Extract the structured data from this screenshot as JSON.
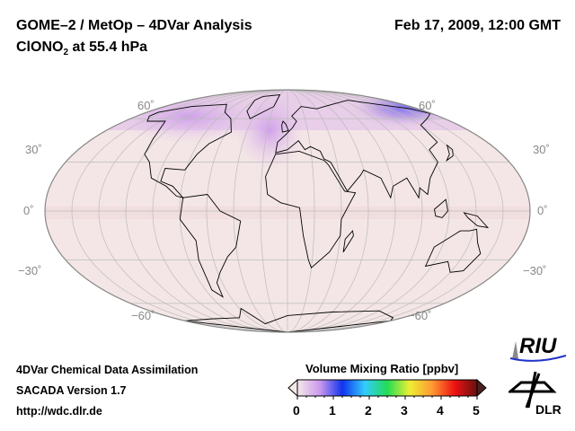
{
  "header": {
    "title_line1": "GOME–2 / MetOp – 4DVar Analysis",
    "species_prefix": "ClONO",
    "species_sub": "2",
    "species_suffix": " at 55.4 hPa",
    "datetime": "Feb 17, 2009, 12:00 GMT"
  },
  "map": {
    "projection": "Mollweide",
    "lat_labels_left": [
      "60˚",
      "30˚",
      "0˚",
      "−30˚",
      "−60˚"
    ],
    "lat_labels_right": [
      "60˚",
      "30˚",
      "0˚",
      "−30˚",
      "−60˚"
    ],
    "background_color": "#f3e4e4",
    "high_color": "#8a7cf0"
  },
  "colorbar": {
    "title": "Volume Mixing Ratio [ppbv]",
    "ticks": [
      "0",
      "1",
      "2",
      "3",
      "4",
      "5"
    ],
    "min": 0,
    "max": 5,
    "colors": [
      "#f5e8e8",
      "#cc99ee",
      "#1133ee",
      "#33ccff",
      "#22dd55",
      "#eeee33",
      "#ff9933",
      "#ee1111",
      "#661111"
    ]
  },
  "footer": {
    "line1": "4DVar Chemical Data Assimilation",
    "line2": "SACADA Version 1.7",
    "line3": "http://wdc.dlr.de"
  },
  "logos": {
    "riu": "RIU",
    "dlr": "DLR"
  }
}
